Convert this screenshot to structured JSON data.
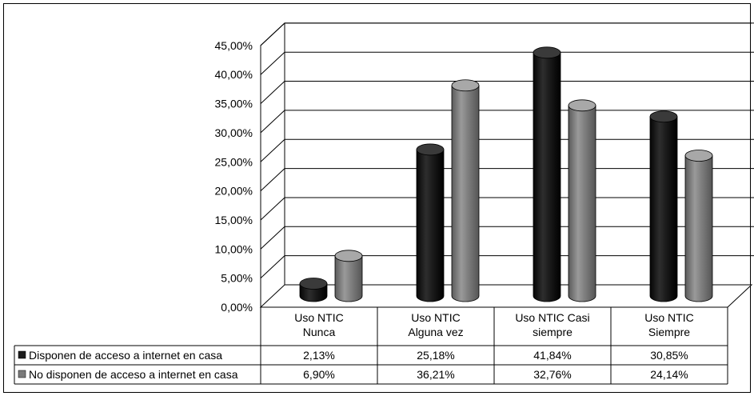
{
  "chart_data": {
    "type": "bar",
    "title": "",
    "xlabel": "",
    "ylabel": "",
    "ylim": [
      0,
      45
    ],
    "y_ticks": [
      "0,00%",
      "5,00%",
      "10,00%",
      "15,00%",
      "20,00%",
      "25,00%",
      "30,00%",
      "35,00%",
      "40,00%",
      "45,00%"
    ],
    "categories": [
      [
        "Uso NTIC",
        "Nunca"
      ],
      [
        "Uso NTIC",
        "Alguna vez"
      ],
      [
        "Uso NTIC Casi",
        "siempre"
      ],
      [
        "Uso NTIC",
        "Siempre"
      ]
    ],
    "series": [
      {
        "name": "Disponen de acceso a internet en casa",
        "values": [
          2.13,
          25.18,
          41.84,
          30.85
        ],
        "labels": [
          "2,13%",
          "25,18%",
          "41,84%",
          "30,85%"
        ],
        "color": "#1c1c1c"
      },
      {
        "name": "No disponen de acceso a internet en casa",
        "values": [
          6.9,
          36.21,
          32.76,
          24.14
        ],
        "labels": [
          "6,90%",
          "36,21%",
          "32,76%",
          "24,14%"
        ],
        "color": "#7a7a7a"
      }
    ],
    "grid": true,
    "legend": "data-table"
  }
}
